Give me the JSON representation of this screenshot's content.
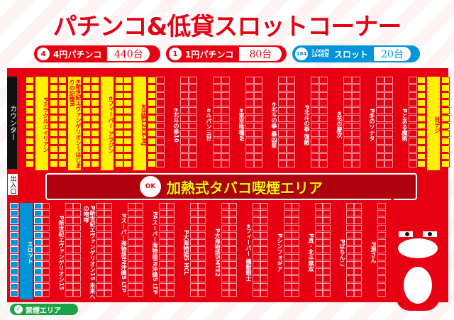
{
  "title": "パチンコ&低貸スロットコーナー",
  "legend": [
    {
      "badge": "4",
      "label": "4円パチンコ",
      "count": "440台",
      "color": "#e60012"
    },
    {
      "badge": "1",
      "label": "1円パチンコ",
      "count": "80台",
      "color": "#e60012"
    },
    {
      "badge": "184",
      "label": "スロット",
      "small": "1,000円 184枚貸",
      "count": "20台",
      "color": "#0095d9"
    }
  ],
  "map": {
    "counter": "カウンター",
    "exit": "出入口",
    "smoking_area": "加熱式タバコ喫煙エリア",
    "ok_badge": "OK",
    "nonsmoking": "禁煙エリア",
    "top_rows": [
      {
        "name": "Pミラクルエイリアン",
        "style": "yellow"
      },
      {
        "name": "e新世紀エヴァンゲリオン〜はじまりの記憶R",
        "style": "yellow"
      },
      {
        "name": "eフィーバー アラジン",
        "style": "yellow"
      },
      {
        "name": "e牙狼12XX-MJ",
        "style": "yellow"
      },
      {
        "name": "e北斗の拳10",
        "style": "red"
      },
      {
        "name": "eルパン三世",
        "style": "red"
      },
      {
        "name": "e東京喰種W",
        "style": "red"
      },
      {
        "name": "e北斗の拳 暴凶星",
        "style": "red"
      },
      {
        "name": "P北斗の拳 強敵",
        "style": "red"
      },
      {
        "name": "e花の慶次",
        "style": "red"
      },
      {
        "name": "P冬のソナタ",
        "style": "red"
      },
      {
        "name": "Pとある魔術",
        "style": "red"
      },
      {
        "name": "甘デジ",
        "style": "yellow"
      },
      {
        "name": "1円コーナー",
        "style": "yellow"
      }
    ],
    "bottom_rows": [
      {
        "name": "スロット",
        "style": "blue"
      },
      {
        "name": "P新世紀エヴァンゲリオン15",
        "style": "red"
      },
      {
        "name": "P新世紀エヴァンゲリオン15 未来への咆哮",
        "style": "red"
      },
      {
        "name": "Pスーパー海物語IN沖縄5 LTP",
        "style": "red"
      },
      {
        "name": "PAスーパー海物語IN沖縄5 LTP",
        "style": "red"
      },
      {
        "name": "P大海物語5 HCL",
        "style": "red"
      },
      {
        "name": "P大海物語5MTE2",
        "style": "red"
      },
      {
        "name": "eフィーバー 機動戦士",
        "style": "red"
      },
      {
        "name": "Pシンフォギア",
        "style": "red"
      },
      {
        "name": "P真・北斗無双",
        "style": "red"
      },
      {
        "name": "Pぱちんこ",
        "style": "red"
      },
      {
        "name": "P源さん",
        "style": "red"
      }
    ]
  }
}
